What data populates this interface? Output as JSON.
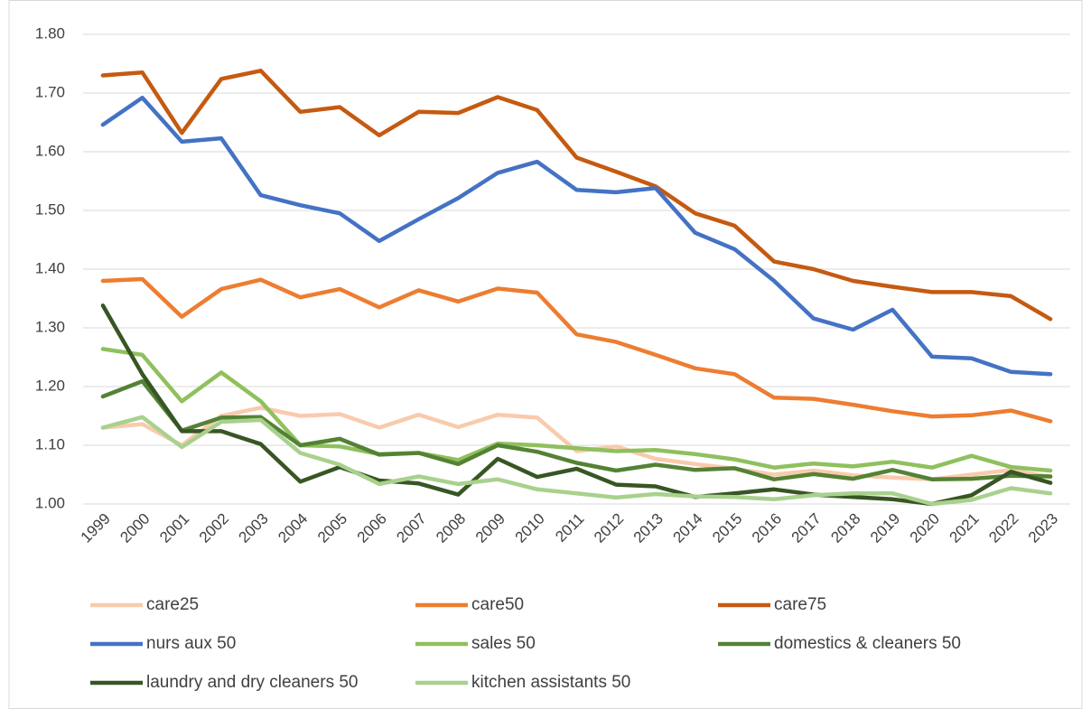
{
  "chart_data": {
    "type": "line",
    "categories": [
      "1999",
      "2000",
      "2001",
      "2002",
      "2003",
      "2004",
      "2005",
      "2006",
      "2007",
      "2008",
      "2009",
      "2010",
      "2011",
      "2012",
      "2013",
      "2014",
      "2015",
      "2016",
      "2017",
      "2018",
      "2019",
      "2020",
      "2021",
      "2022",
      "2023"
    ],
    "ylim": [
      1.0,
      1.8
    ],
    "yticks": [
      {
        "value": 1.0,
        "label": "1.00"
      },
      {
        "value": 1.1,
        "label": "1.10"
      },
      {
        "value": 1.2,
        "label": "1.20"
      },
      {
        "value": 1.3,
        "label": "1.30"
      },
      {
        "value": 1.4,
        "label": "1.40"
      },
      {
        "value": 1.5,
        "label": "1.50"
      },
      {
        "value": 1.6,
        "label": "1.60"
      },
      {
        "value": 1.7,
        "label": "1.70"
      },
      {
        "value": 1.8,
        "label": "1.80"
      }
    ],
    "grid": true,
    "series": [
      {
        "name": "care25",
        "color": "#f8cbad",
        "values": [
          1.13,
          1.136,
          1.1,
          1.15,
          1.164,
          1.15,
          1.153,
          1.13,
          1.152,
          1.131,
          1.152,
          1.147,
          1.09,
          1.098,
          1.077,
          1.068,
          1.06,
          1.05,
          1.057,
          1.049,
          1.045,
          1.042,
          1.05,
          1.058,
          1.046
        ]
      },
      {
        "name": "care50",
        "color": "#ed7d31",
        "values": [
          1.38,
          1.383,
          1.319,
          1.366,
          1.382,
          1.352,
          1.366,
          1.335,
          1.364,
          1.345,
          1.367,
          1.36,
          1.289,
          1.276,
          1.254,
          1.231,
          1.221,
          1.181,
          1.179,
          1.169,
          1.158,
          1.149,
          1.151,
          1.159,
          1.141
        ]
      },
      {
        "name": "care75",
        "color": "#c55a11",
        "values": [
          1.73,
          1.735,
          1.632,
          1.724,
          1.738,
          1.668,
          1.676,
          1.628,
          1.668,
          1.666,
          1.693,
          1.671,
          1.59,
          1.566,
          1.541,
          1.495,
          1.474,
          1.413,
          1.4,
          1.38,
          1.37,
          1.361,
          1.361,
          1.354,
          1.315
        ]
      },
      {
        "name": "nurs aux 50",
        "color": "#4472c4",
        "values": [
          1.646,
          1.692,
          1.617,
          1.623,
          1.526,
          1.509,
          1.495,
          1.448,
          1.485,
          1.521,
          1.564,
          1.583,
          1.535,
          1.531,
          1.538,
          1.462,
          1.434,
          1.38,
          1.316,
          1.297,
          1.331,
          1.251,
          1.248,
          1.225,
          1.221
        ]
      },
      {
        "name": "sales 50",
        "color": "#8fc05d",
        "values": [
          1.264,
          1.254,
          1.175,
          1.224,
          1.175,
          1.1,
          1.098,
          1.085,
          1.087,
          1.075,
          1.103,
          1.1,
          1.095,
          1.09,
          1.092,
          1.085,
          1.076,
          1.062,
          1.069,
          1.064,
          1.072,
          1.062,
          1.082,
          1.063,
          1.057
        ]
      },
      {
        "name": "domestics & cleaners 50",
        "color": "#548235",
        "values": [
          1.183,
          1.209,
          1.125,
          1.147,
          1.148,
          1.1,
          1.111,
          1.084,
          1.087,
          1.068,
          1.1,
          1.089,
          1.07,
          1.057,
          1.067,
          1.058,
          1.061,
          1.042,
          1.051,
          1.043,
          1.058,
          1.042,
          1.043,
          1.048,
          1.047
        ]
      },
      {
        "name": "laundry and dry cleaners 50",
        "color": "#375623",
        "values": [
          1.338,
          1.221,
          1.124,
          1.124,
          1.102,
          1.038,
          1.063,
          1.04,
          1.035,
          1.016,
          1.077,
          1.046,
          1.06,
          1.033,
          1.03,
          1.012,
          1.018,
          1.025,
          1.016,
          1.012,
          1.008,
          1.0,
          1.015,
          1.055,
          1.036
        ]
      },
      {
        "name": "kitchen assistants 50",
        "color": "#a9d18e",
        "values": [
          1.13,
          1.148,
          1.097,
          1.14,
          1.143,
          1.087,
          1.067,
          1.034,
          1.047,
          1.034,
          1.042,
          1.025,
          1.018,
          1.011,
          1.017,
          1.013,
          1.012,
          1.008,
          1.015,
          1.018,
          1.018,
          1.0,
          1.007,
          1.027,
          1.018
        ]
      }
    ]
  }
}
